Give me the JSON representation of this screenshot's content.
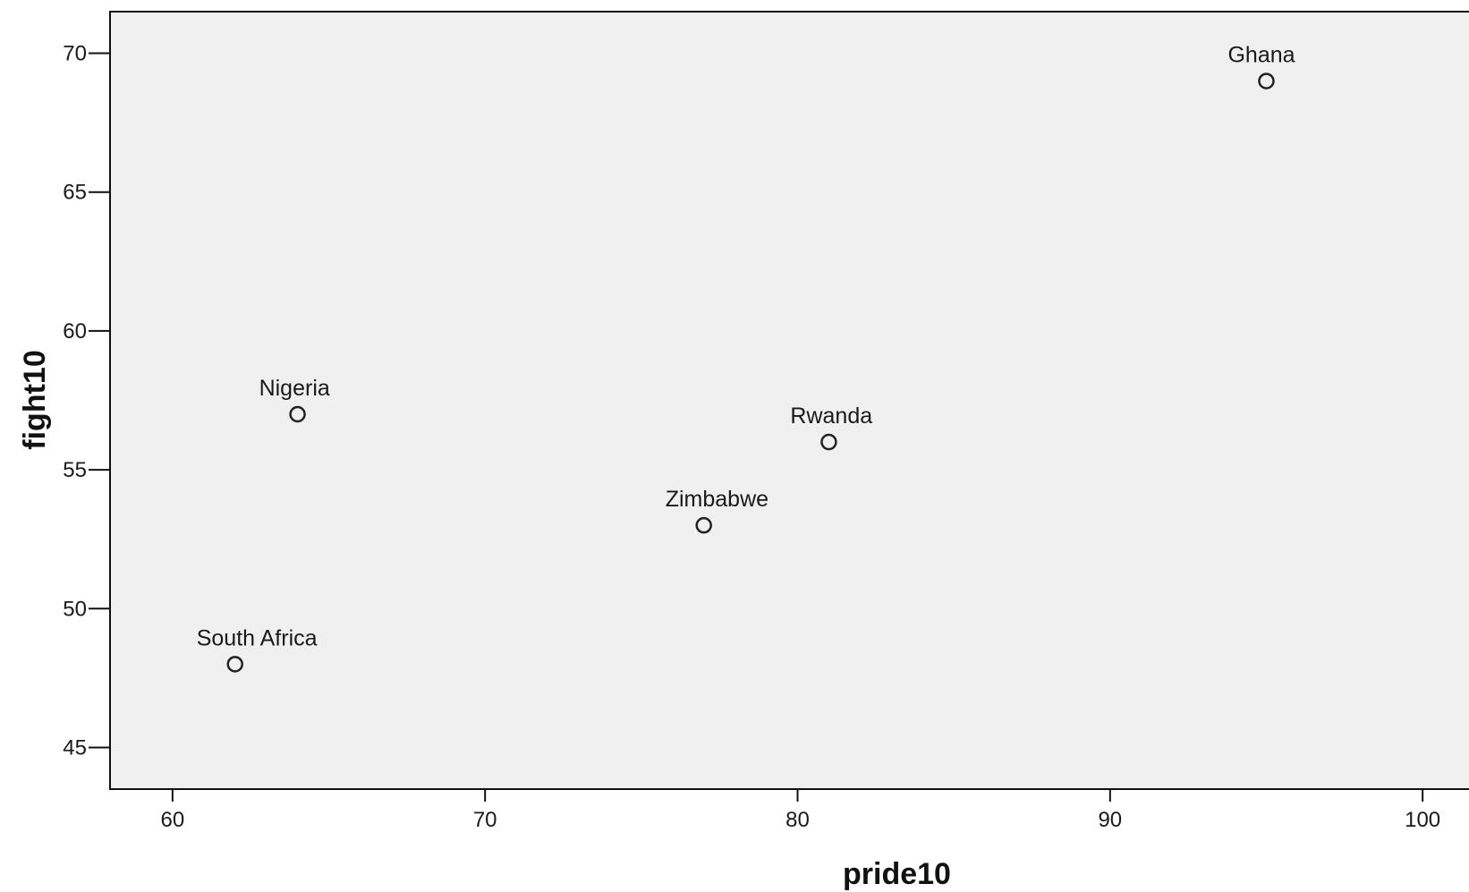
{
  "colors": {
    "plot_background": "#f0f0f0",
    "page_background": "#ffffff",
    "axis_line": "#111111",
    "marker_stroke": "#222222",
    "text": "#1a1a1a"
  },
  "chart_data": {
    "type": "scatter",
    "title": "",
    "xlabel": "pride10",
    "ylabel": "fight10",
    "xlim": [
      58,
      102
    ],
    "ylim": [
      43.5,
      71.5
    ],
    "x_ticks": [
      60,
      70,
      80,
      90,
      100
    ],
    "y_ticks": [
      45,
      50,
      55,
      60,
      65,
      70
    ],
    "grid": false,
    "legend": "none",
    "marker": "open-circle",
    "points": [
      {
        "label": "Ghana",
        "x": 95,
        "y": 69
      },
      {
        "label": "Nigeria",
        "x": 64,
        "y": 57
      },
      {
        "label": "Rwanda",
        "x": 81,
        "y": 56
      },
      {
        "label": "Zimbabwe",
        "x": 77,
        "y": 53
      },
      {
        "label": "South Africa",
        "x": 62,
        "y": 48
      }
    ]
  }
}
